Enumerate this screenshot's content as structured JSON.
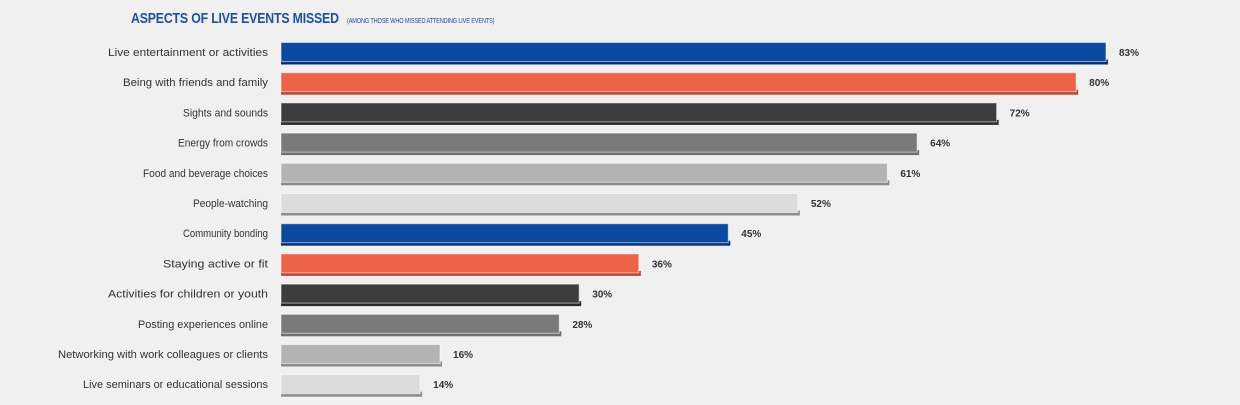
{
  "chart_data": {
    "type": "bar",
    "orientation": "horizontal",
    "title": "ASPECTS OF LIVE EVENTS MISSED",
    "subtitle": "(AMONG THOSE WHO MISSED ATTENDING LIVE EVENTS)",
    "categories": [
      "Live entertainment or activities",
      "Being with friends and family",
      "Sights and sounds",
      "Energy from crowds",
      "Food and beverage choices",
      "People-watching",
      "Community bonding",
      "Staying active or fit",
      "Activities for children or youth",
      "Posting experiences online",
      "Networking with work colleagues or clients",
      "Live seminars or educational sessions"
    ],
    "values": [
      83,
      80,
      72,
      64,
      61,
      52,
      45,
      36,
      30,
      28,
      16,
      14
    ],
    "value_labels": [
      "83%",
      "80%",
      "72%",
      "64%",
      "61%",
      "52%",
      "45%",
      "36%",
      "30%",
      "28%",
      "16%",
      "14%"
    ],
    "unit": "%",
    "xlim": [
      0,
      83
    ],
    "grid": false,
    "legend": "none",
    "colors": {
      "fill": [
        "#0b4aa2",
        "#ee6348",
        "#3d3d3d",
        "#7a7a7a",
        "#b3b3b3",
        "#dcdcdc",
        "#0b4aa2",
        "#ee6348",
        "#3d3d3d",
        "#7a7a7a",
        "#b3b3b3",
        "#dcdcdc"
      ],
      "shadow": [
        "#0a3375",
        "#c04630",
        "#2a2a2a",
        "#6f6f6f",
        "#8c8c8c",
        "#8e8e8e",
        "#0a3375",
        "#c04630",
        "#2a2a2a",
        "#6f6f6f",
        "#8c8c8c",
        "#8e8e8e"
      ],
      "title": "#1d4fa3"
    }
  }
}
